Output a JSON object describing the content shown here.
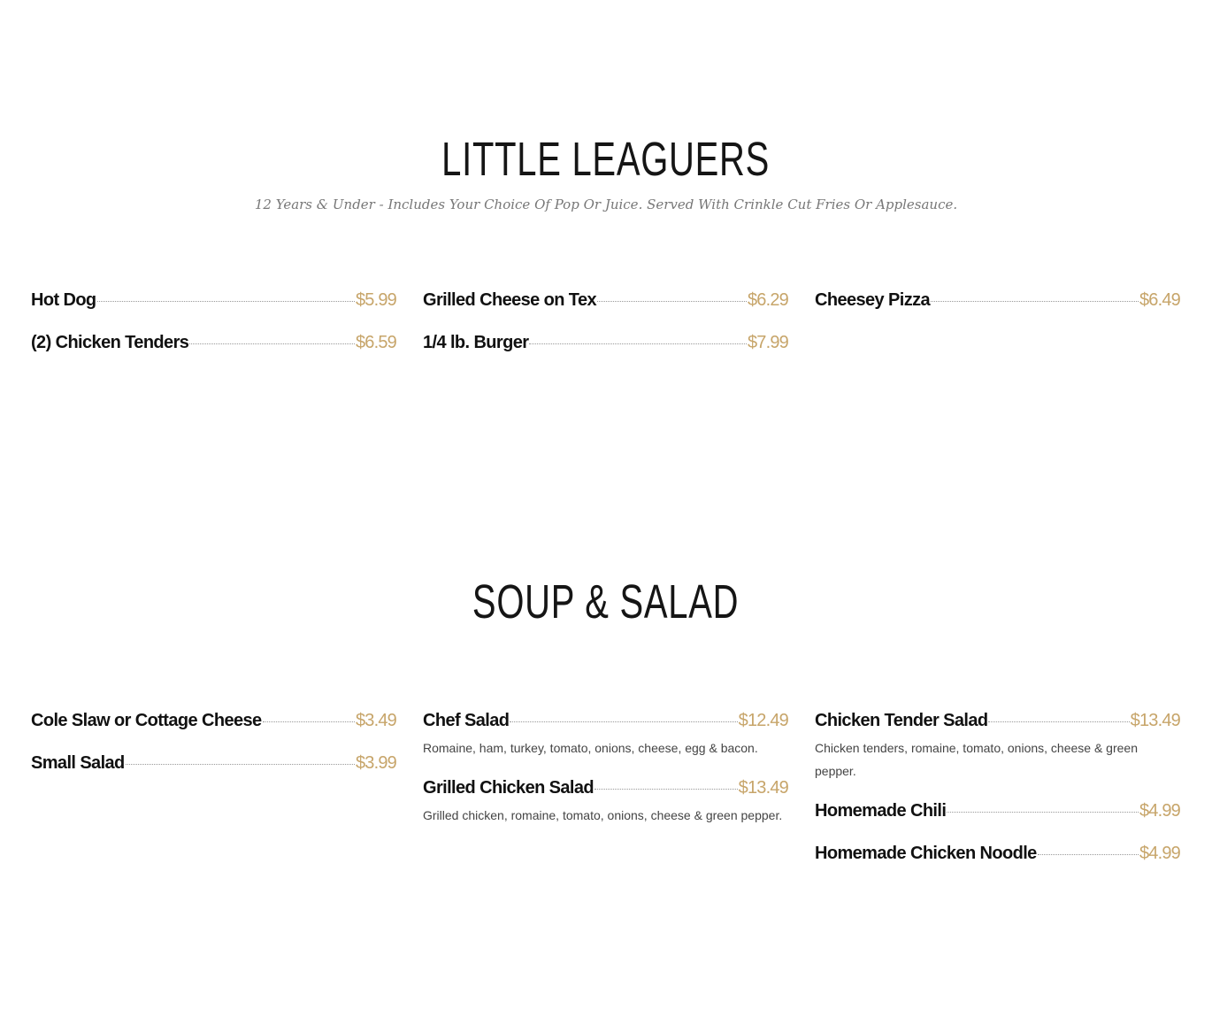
{
  "sections": [
    {
      "title": "LITTLE LEAGUERS",
      "subtitle": "12 Years & Under - Includes Your Choice Of Pop Or Juice. Served With Crinkle Cut Fries Or Applesauce.",
      "columns": [
        [
          {
            "name": "Hot Dog",
            "price": "$5.99"
          },
          {
            "name": "(2) Chicken Tenders",
            "price": "$6.59"
          }
        ],
        [
          {
            "name": "Grilled Cheese on Tex",
            "price": "$6.29"
          },
          {
            "name": "1/4 lb. Burger",
            "price": "$7.99"
          }
        ],
        [
          {
            "name": "Cheesey Pizza",
            "price": "$6.49"
          }
        ]
      ]
    },
    {
      "title": "SOUP & SALAD",
      "columns": [
        [
          {
            "name": "Cole Slaw or Cottage Cheese",
            "price": "$3.49"
          },
          {
            "name": "Small Salad",
            "price": "$3.99"
          }
        ],
        [
          {
            "name": "Chef Salad",
            "price": "$12.49",
            "desc": "Romaine, ham, turkey, tomato, onions, cheese, egg & bacon."
          },
          {
            "name": "Grilled Chicken Salad",
            "price": "$13.49",
            "desc": "Grilled chicken, romaine, tomato, onions, cheese & green pepper."
          }
        ],
        [
          {
            "name": "Chicken Tender Salad",
            "price": "$13.49",
            "desc": "Chicken tenders, romaine, tomato, onions, cheese & green pepper."
          },
          {
            "name": "Homemade Chili",
            "price": "$4.99"
          },
          {
            "name": "Homemade Chicken Noodle",
            "price": "$4.99"
          }
        ]
      ]
    }
  ],
  "colors": {
    "price": "#c7a56a",
    "heading": "#151515"
  }
}
